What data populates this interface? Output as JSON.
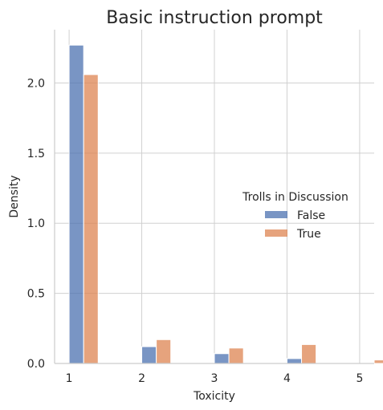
{
  "chart_data": {
    "type": "bar",
    "title": "Basic instruction prompt",
    "xlabel": "Toxicity",
    "ylabel": "Density",
    "categories": [
      "1",
      "2",
      "3",
      "4",
      "5"
    ],
    "x": [
      1,
      2,
      3,
      4,
      5
    ],
    "xlim": [
      0.8,
      5.2
    ],
    "ylim": [
      0,
      2.38
    ],
    "yticks": [
      0.0,
      0.5,
      1.0,
      1.5,
      2.0
    ],
    "ytick_labels": [
      "0.0",
      "0.5",
      "1.0",
      "1.5",
      "2.0"
    ],
    "grid": true,
    "legend": {
      "title": "Trolls in Discussion",
      "position": "center-right"
    },
    "series": [
      {
        "name": "False",
        "color": "#4c72b0",
        "values": [
          2.27,
          0.12,
          0.07,
          0.035,
          0.0
        ]
      },
      {
        "name": "True",
        "color": "#dd8452",
        "values": [
          2.06,
          0.17,
          0.11,
          0.135,
          0.025
        ]
      }
    ]
  }
}
